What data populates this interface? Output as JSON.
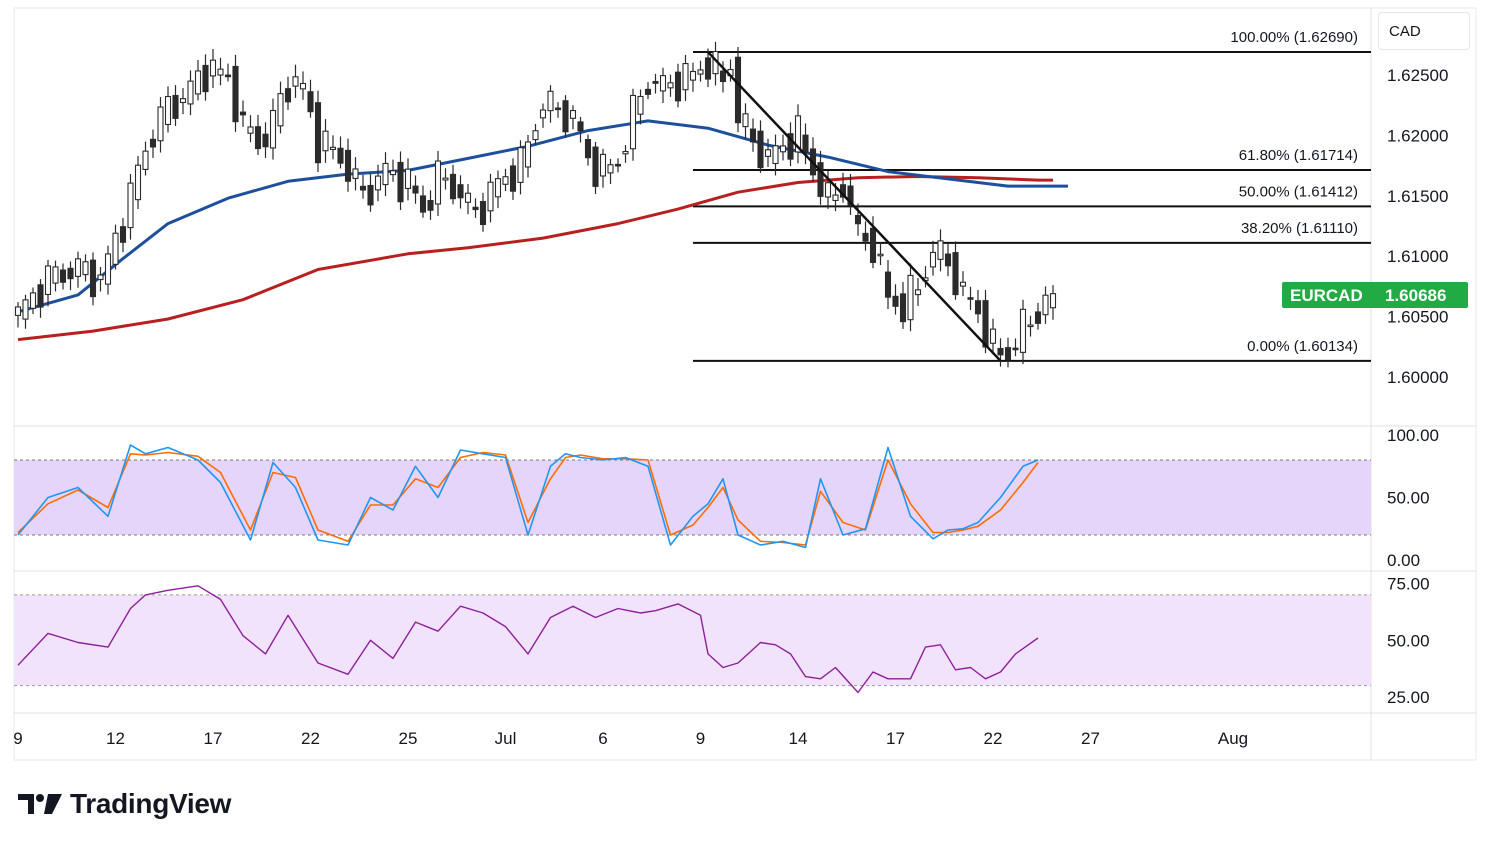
{
  "currency": "CAD",
  "brand": "TradingView",
  "symbol": {
    "name": "EURCAD",
    "price": "1.60686",
    "price_value": 1.60686,
    "color": "#22ab45"
  },
  "colors": {
    "ema_blue": "#1e4f9c",
    "ema_red": "#b82020",
    "stoch_k": "#2196f3",
    "stoch_d": "#ff6d00",
    "rsi": "#8e1f9c",
    "stoch_band": "#e6d5fb",
    "rsi_band": "#f1e3fc",
    "candle": "#2b2b2b"
  },
  "chart_data": [
    {
      "type": "candlestick",
      "panel": "price",
      "ylim": [
        1.5985,
        1.6285
      ],
      "y_ticks": [
        "1.62500",
        "1.62000",
        "1.61500",
        "1.61000",
        "1.60500",
        "1.60000"
      ],
      "y_tick_values": [
        1.625,
        1.62,
        1.615,
        1.61,
        1.605,
        1.6
      ],
      "fibonacci": [
        {
          "label": "100.00% (1.62690)",
          "value": 1.6269
        },
        {
          "label": "61.80% (1.61714)",
          "value": 1.61714
        },
        {
          "label": "50.00% (1.61412)",
          "value": 1.61412
        },
        {
          "label": "38.20% (1.61110)",
          "value": 1.6111
        },
        {
          "label": "0.00% (1.60134)",
          "value": 1.60134
        }
      ],
      "series": [
        {
          "kind": "ema",
          "x": [
            0,
            8,
            14,
            20,
            28,
            36,
            44,
            52,
            60,
            68,
            76,
            84,
            92,
            100,
            108,
            116,
            124,
            132,
            140
          ],
          "values": [
            1.6054,
            1.6068,
            1.6098,
            1.6127,
            1.6148,
            1.6162,
            1.6168,
            1.6171,
            1.6181,
            1.6191,
            1.6204,
            1.6212,
            1.6206,
            1.6192,
            1.6182,
            1.617,
            1.6164,
            1.6158,
            1.6158
          ]
        },
        {
          "kind": "ema",
          "x": [
            0,
            10,
            20,
            30,
            40,
            52,
            60,
            70,
            80,
            88,
            96,
            104,
            112,
            120,
            128,
            136,
            138
          ],
          "values": [
            1.6031,
            1.6038,
            1.6048,
            1.6064,
            1.6089,
            1.6102,
            1.6107,
            1.6115,
            1.6127,
            1.6139,
            1.6153,
            1.6161,
            1.6165,
            1.6166,
            1.6165,
            1.6163,
            1.6163
          ]
        },
        {
          "kind": "price",
          "x": [
            0,
            4,
            8,
            11,
            14,
            17,
            20,
            22,
            25,
            28,
            30,
            33,
            36,
            38,
            40,
            43,
            46,
            49,
            52,
            54,
            56,
            58,
            61,
            64,
            67,
            70,
            72,
            74,
            76,
            78,
            80,
            82,
            84,
            86,
            88,
            90,
            92,
            94,
            95,
            96,
            98,
            100,
            102,
            104,
            106,
            108,
            110,
            112,
            114,
            116,
            118,
            120,
            122,
            124,
            126,
            128,
            130,
            132,
            134,
            136,
            138
          ],
          "values": [
            1.6051,
            1.6082,
            1.609,
            1.608,
            1.613,
            1.619,
            1.6225,
            1.623,
            1.6255,
            1.6248,
            1.6205,
            1.6195,
            1.6245,
            1.6238,
            1.6195,
            1.6182,
            1.615,
            1.617,
            1.616,
            1.6138,
            1.6165,
            1.6158,
            1.6135,
            1.616,
            1.6175,
            1.6228,
            1.622,
            1.6215,
            1.618,
            1.617,
            1.6178,
            1.6218,
            1.6245,
            1.624,
            1.6245,
            1.625,
            1.6261,
            1.6245,
            1.6262,
            1.6215,
            1.6195,
            1.618,
            1.6192,
            1.62,
            1.6172,
            1.6145,
            1.616,
            1.6118,
            1.611,
            1.6065,
            1.6058,
            1.6075,
            1.6105,
            1.6095,
            1.6068,
            1.6055,
            1.6022,
            1.602,
            1.604,
            1.6055,
            1.6069
          ]
        },
        {
          "kind": "trendline",
          "x": [
            92,
            131
          ],
          "values": [
            1.6269,
            1.60134
          ]
        }
      ]
    },
    {
      "type": "line",
      "panel": "stochastic",
      "ylim": [
        -5,
        105
      ],
      "y_ticks": [
        "100.00",
        "50.00",
        "0.00"
      ],
      "y_tick_values": [
        100,
        50,
        0
      ],
      "band": [
        20,
        80
      ],
      "series": [
        {
          "kind": "k",
          "x": [
            0,
            4,
            8,
            12,
            15,
            17,
            20,
            24,
            27,
            31,
            34,
            37,
            40,
            44,
            47,
            50,
            53,
            56,
            59,
            62,
            65,
            68,
            71,
            73,
            75,
            78,
            81,
            84,
            87,
            90,
            92,
            94,
            96,
            99,
            102,
            105,
            107,
            110,
            113,
            116,
            119,
            122,
            124,
            126,
            128,
            131,
            134,
            136
          ],
          "values": [
            20,
            50,
            58,
            35,
            92,
            85,
            90,
            80,
            62,
            16,
            78,
            58,
            16,
            12,
            50,
            40,
            75,
            50,
            88,
            85,
            82,
            20,
            75,
            85,
            82,
            80,
            82,
            75,
            12,
            35,
            45,
            65,
            20,
            12,
            15,
            10,
            65,
            20,
            25,
            90,
            35,
            17,
            24,
            25,
            30,
            50,
            75,
            80
          ]
        },
        {
          "kind": "d",
          "x": [
            0,
            4,
            8,
            12,
            15,
            17,
            20,
            24,
            27,
            31,
            34,
            37,
            40,
            44,
            47,
            50,
            53,
            56,
            59,
            62,
            65,
            68,
            71,
            73,
            75,
            78,
            81,
            84,
            87,
            90,
            92,
            94,
            96,
            99,
            102,
            105,
            107,
            110,
            113,
            116,
            119,
            122,
            124,
            126,
            128,
            131,
            134,
            136
          ],
          "values": [
            22,
            45,
            56,
            42,
            85,
            84,
            86,
            83,
            70,
            24,
            70,
            66,
            24,
            15,
            44,
            44,
            65,
            58,
            82,
            86,
            84,
            30,
            65,
            82,
            84,
            81,
            81,
            80,
            20,
            28,
            42,
            58,
            32,
            15,
            14,
            12,
            55,
            30,
            24,
            80,
            45,
            22,
            22,
            24,
            27,
            40,
            62,
            78
          ]
        }
      ]
    },
    {
      "type": "line",
      "panel": "rsi",
      "ylim": [
        22,
        78
      ],
      "y_ticks": [
        "75.00",
        "50.00",
        "25.00"
      ],
      "y_tick_values": [
        75,
        50,
        25
      ],
      "band": [
        30,
        70
      ],
      "series": [
        {
          "kind": "rsi",
          "x": [
            0,
            4,
            8,
            12,
            15,
            17,
            20,
            24,
            27,
            30,
            33,
            36,
            40,
            44,
            47,
            50,
            53,
            56,
            59,
            62,
            65,
            68,
            71,
            74,
            77,
            80,
            83,
            85,
            88,
            91,
            92,
            94,
            96,
            99,
            101,
            103,
            105,
            107,
            109,
            112,
            114,
            116,
            119,
            121,
            123,
            125,
            127,
            129,
            131,
            133,
            136
          ],
          "values": [
            39,
            53,
            49,
            47,
            64,
            70,
            72,
            74,
            68,
            52,
            44,
            61,
            40,
            35,
            50,
            42,
            58,
            54,
            65,
            62,
            56,
            44,
            60,
            65,
            60,
            64,
            62,
            63,
            66,
            61,
            44,
            38,
            40,
            49,
            48,
            44,
            34,
            33,
            38,
            27,
            36,
            33,
            33,
            47,
            48,
            37,
            38,
            33,
            36,
            44,
            51
          ]
        }
      ]
    }
  ],
  "x_axis": {
    "ticks": [
      {
        "label": "9",
        "x": 0
      },
      {
        "label": "12",
        "x": 13
      },
      {
        "label": "17",
        "x": 26
      },
      {
        "label": "22",
        "x": 39
      },
      {
        "label": "25",
        "x": 52
      },
      {
        "label": "Jul",
        "x": 65
      },
      {
        "label": "6",
        "x": 78
      },
      {
        "label": "9",
        "x": 91
      },
      {
        "label": "14",
        "x": 104
      },
      {
        "label": "17",
        "x": 117
      },
      {
        "label": "22",
        "x": 130
      },
      {
        "label": "27",
        "x": 143
      },
      {
        "label": "Aug",
        "x": 162
      }
    ]
  }
}
